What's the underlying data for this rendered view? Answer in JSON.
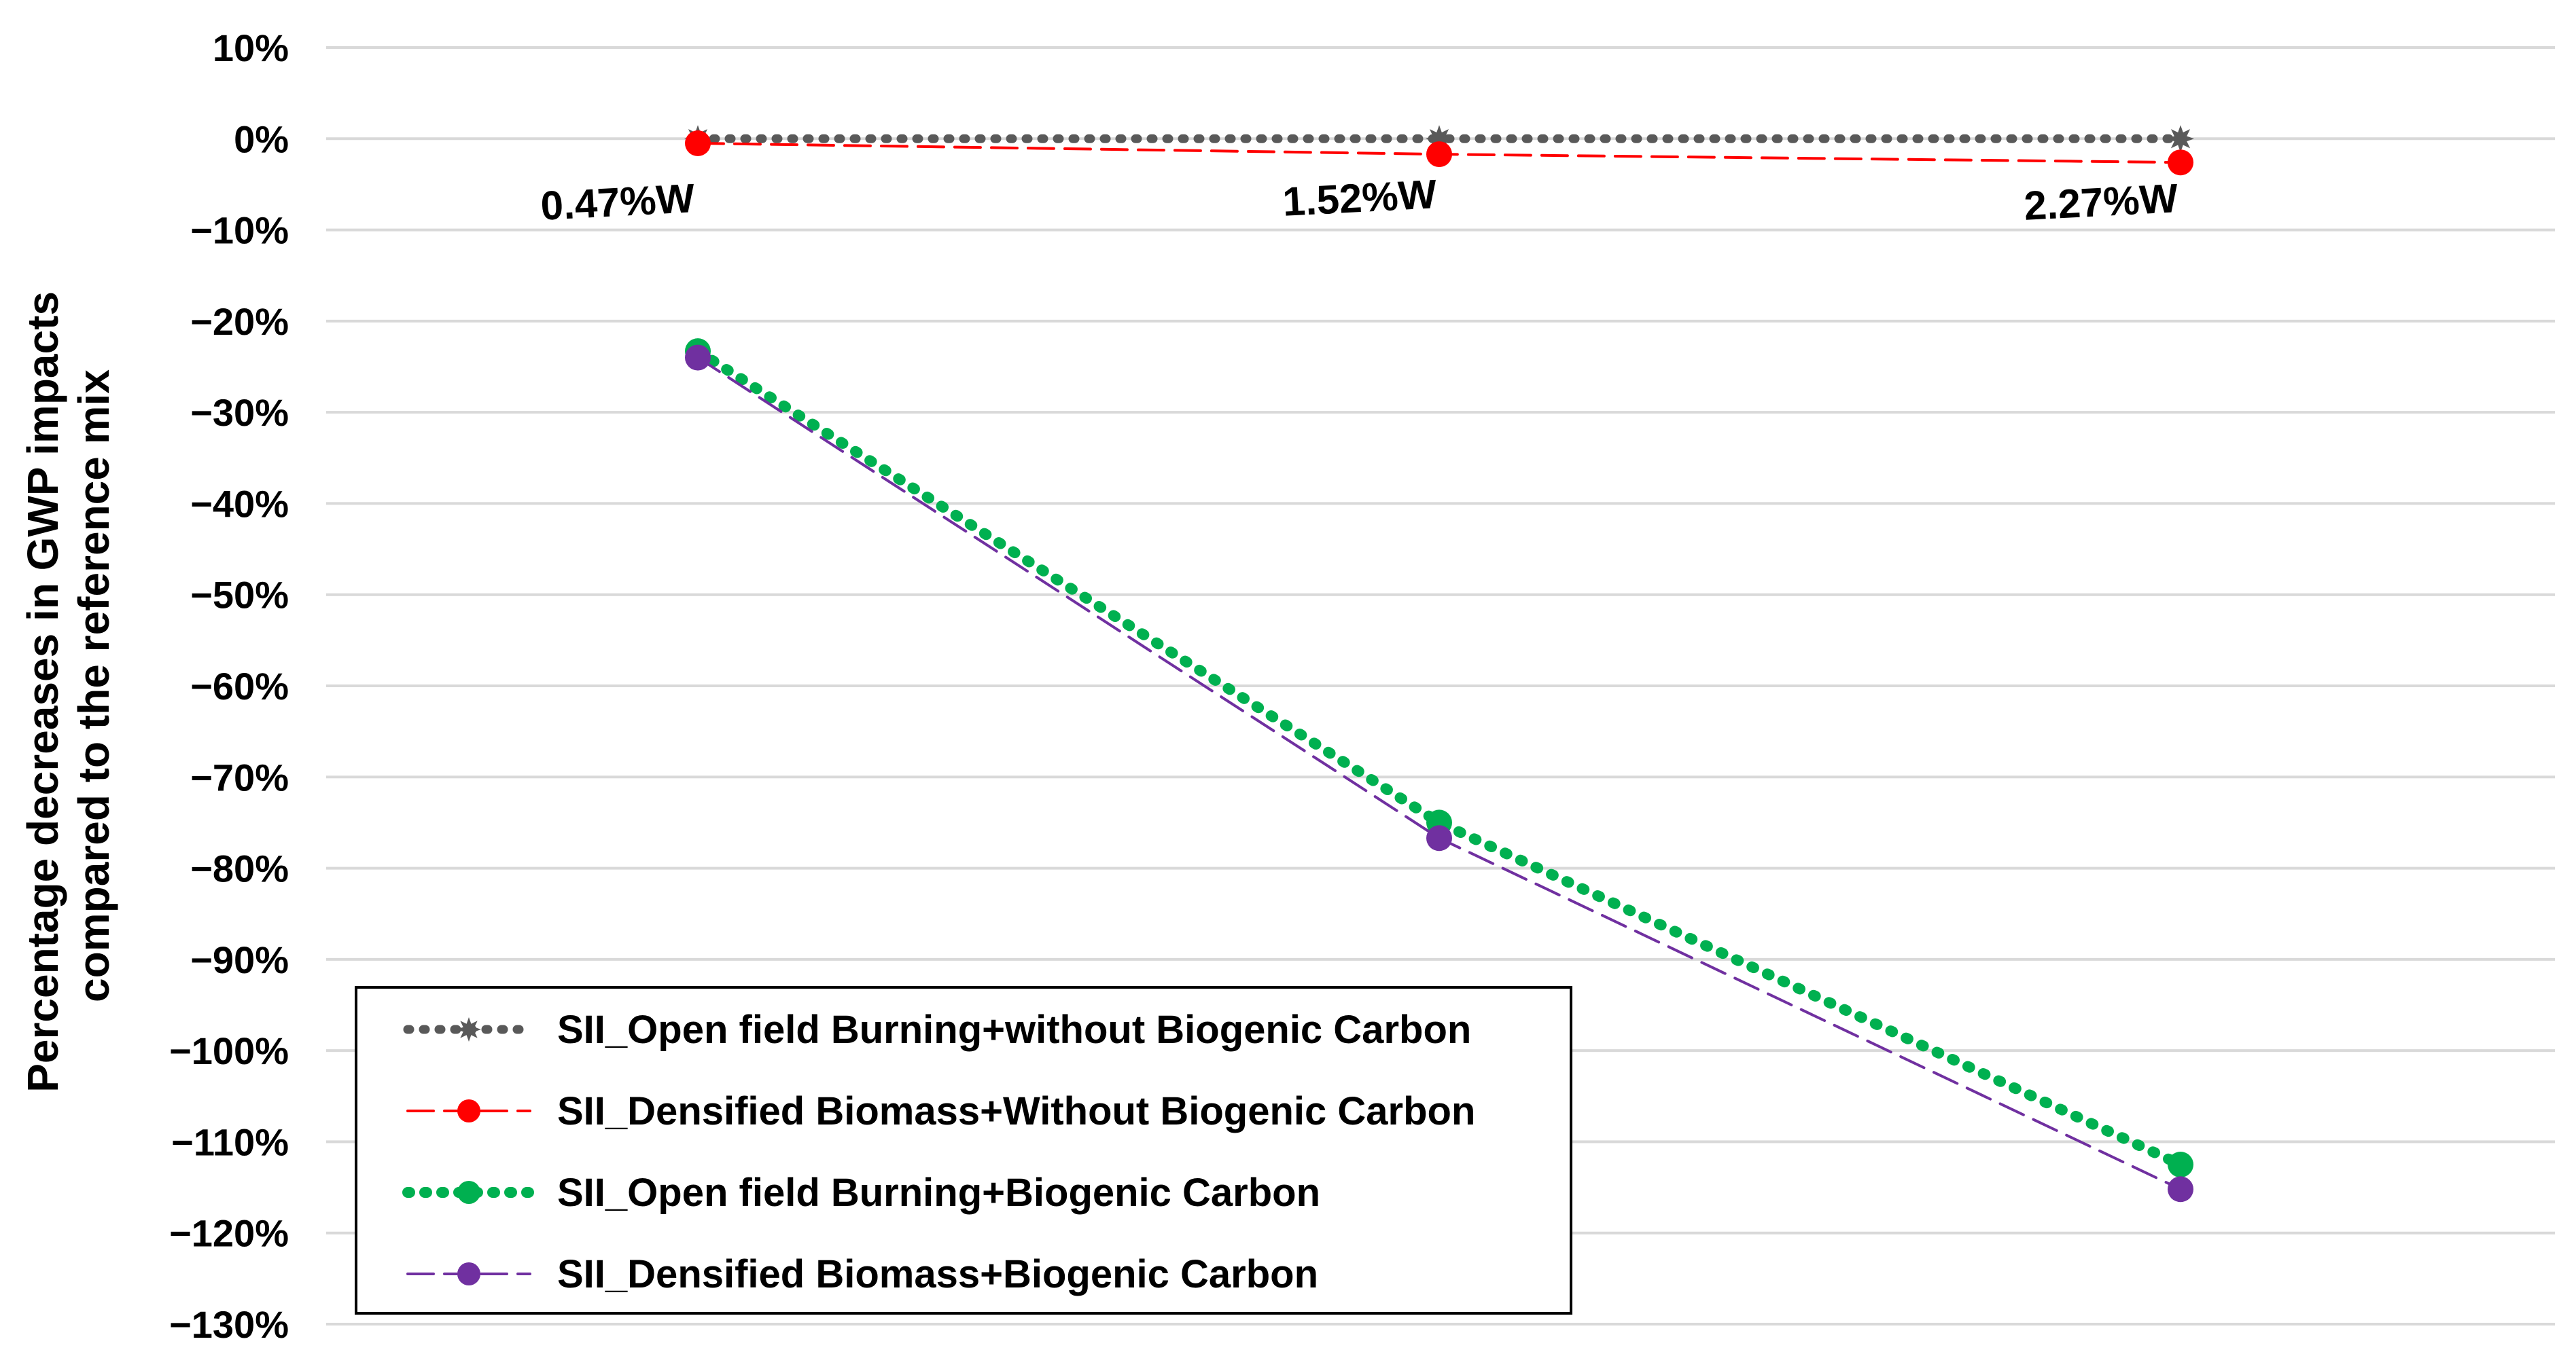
{
  "chart_data": {
    "type": "line",
    "title": "",
    "xlabel": "",
    "ylabel_lines": [
      "Percentage decreases in GWP impacts",
      "compared to the reference mix"
    ],
    "categories": [
      "0.47%W",
      "1.52%W",
      "2.27%W"
    ],
    "ylim": [
      -130,
      10
    ],
    "yticks": [
      10,
      0,
      -10,
      -20,
      -30,
      -40,
      -50,
      -60,
      -70,
      -80,
      -90,
      -100,
      -110,
      -120,
      -130
    ],
    "ytick_labels": [
      "10%",
      "0%",
      "−10%",
      "−20%",
      "−30%",
      "−40%",
      "−50%",
      "−60%",
      "−70%",
      "−80%",
      "−90%",
      "−100%",
      "−110%",
      "−120%",
      "−130%"
    ],
    "grid": true,
    "legend_position": "bottom-left",
    "series": [
      {
        "name": "SII_Open field Burning+without Biogenic Carbon",
        "values": [
          0,
          0,
          0
        ],
        "color": "#595959",
        "line_style": "dotted",
        "marker": "star"
      },
      {
        "name": "SII_Densified Biomass+Without Biogenic Carbon",
        "values": [
          -0.5,
          -1.7,
          -2.6
        ],
        "color": "#ff0000",
        "line_style": "dashed",
        "marker": "circle"
      },
      {
        "name": "SII_Open field Burning+Biogenic Carbon",
        "values": [
          -23.3,
          -75.0,
          -112.5
        ],
        "color": "#00b050",
        "line_style": "dotted",
        "marker": "circle"
      },
      {
        "name": "SII_Densified Biomass+Biogenic Carbon",
        "values": [
          -24.0,
          -76.7,
          -115.2
        ],
        "color": "#7030a0",
        "line_style": "dashed",
        "marker": "circle"
      }
    ]
  }
}
